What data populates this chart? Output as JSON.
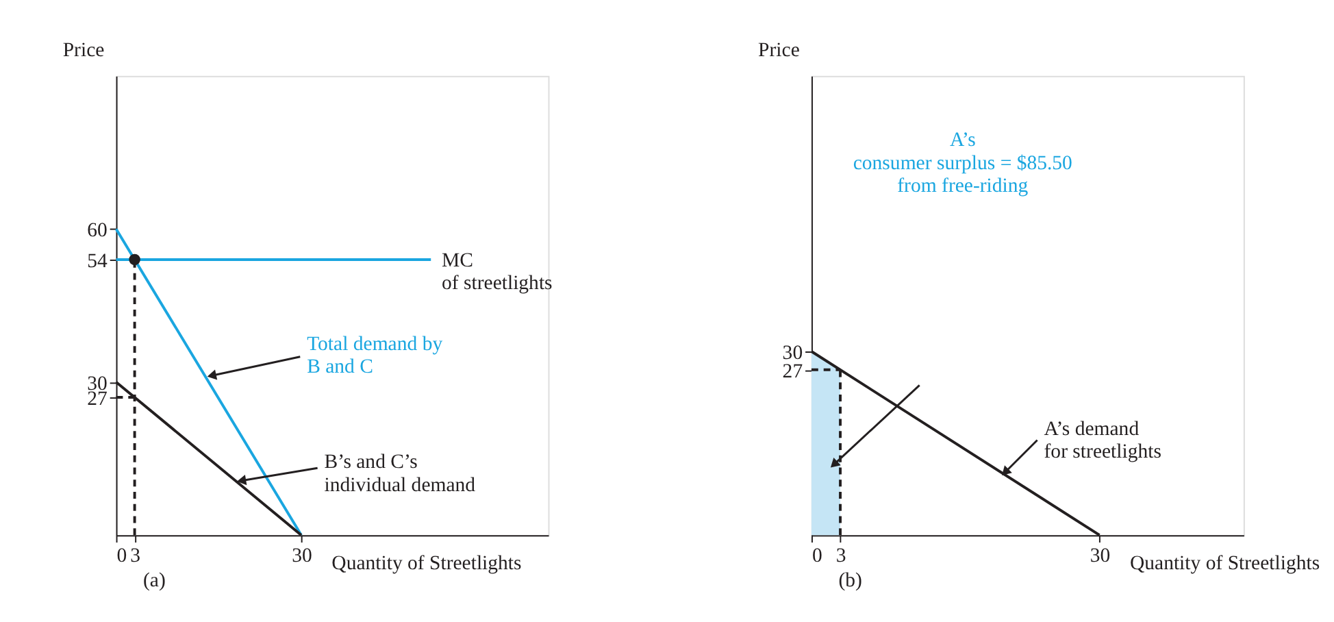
{
  "chart_data": [
    {
      "type": "line",
      "title": "(a)",
      "xlabel": "Quantity of Streetlights",
      "ylabel": "Price",
      "xlim": [
        0,
        70
      ],
      "ylim": [
        0,
        90
      ],
      "xticks": [
        0,
        3,
        30
      ],
      "yticks": [
        27,
        30,
        54,
        60
      ],
      "grid": false,
      "series": [
        {
          "x": [
            0,
            30
          ],
          "values": [
            60,
            0
          ],
          "color": "#1aa6e0"
        },
        {
          "x": [
            0,
            30
          ],
          "values": [
            30,
            0
          ],
          "color": "#231f20"
        },
        {
          "x": [
            0,
            51
          ],
          "values": [
            54,
            54
          ],
          "color": "#1aa6e0"
        },
        {
          "x": [
            3,
            3
          ],
          "values": [
            0,
            54
          ],
          "color": "#231f20",
          "line_style": "dashed"
        },
        {
          "x": [
            0,
            3
          ],
          "values": [
            27,
            27
          ],
          "color": "#231f20",
          "line_style": "dashed"
        },
        {
          "type": "scatter",
          "x": [
            3
          ],
          "values": [
            54
          ],
          "color": "#231f20"
        }
      ],
      "annotations": [
        {
          "text": "MC\nof streetlights",
          "x": 51,
          "y": 54
        },
        {
          "text": "Total demand by\nB and C",
          "x": 14.5,
          "y": 31
        },
        {
          "text": "B’s and C’s\nindividual demand",
          "x": 19.5,
          "y": 10.5
        }
      ]
    },
    {
      "type": "line",
      "title": "(b)",
      "xlabel": "Quantity of Streetlights",
      "ylabel": "Price",
      "xlim": [
        0,
        45
      ],
      "ylim": [
        0,
        75
      ],
      "xticks": [
        0,
        3,
        30
      ],
      "yticks": [
        27,
        30
      ],
      "grid": false,
      "series": [
        {
          "type": "area",
          "x": [
            0,
            3
          ],
          "values": [
            30,
            27
          ],
          "color": "#c5e5f5"
        },
        {
          "x": [
            0,
            30
          ],
          "values": [
            30,
            0
          ],
          "color": "#231f20"
        },
        {
          "x": [
            3,
            3
          ],
          "values": [
            0,
            27
          ],
          "color": "#231f20",
          "line_style": "dashed"
        },
        {
          "x": [
            0,
            3
          ],
          "values": [
            27,
            27
          ],
          "color": "#231f20",
          "line_style": "dashed"
        }
      ],
      "annotations": [
        "A’s\nconsumer surplus = $85.50\nfrom free-riding",
        {
          "text": "A’s demand\nfor streetlights",
          "x": 20,
          "y": 10
        }
      ]
    }
  ]
}
